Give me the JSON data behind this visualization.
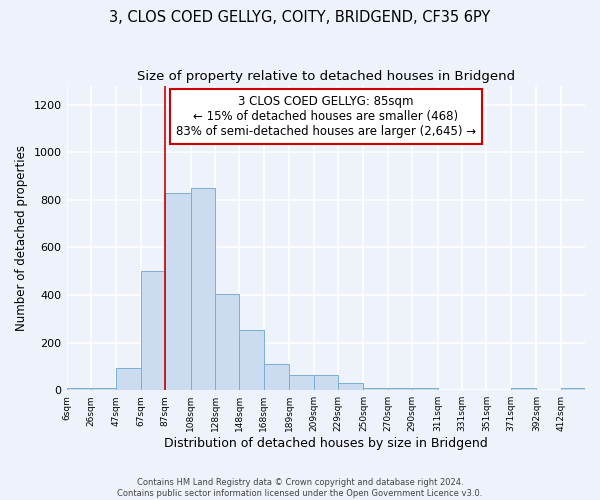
{
  "title": "3, CLOS COED GELLYG, COITY, BRIDGEND, CF35 6PY",
  "subtitle": "Size of property relative to detached houses in Bridgend",
  "xlabel": "Distribution of detached houses by size in Bridgend",
  "ylabel": "Number of detached properties",
  "bar_edges": [
    6,
    26,
    47,
    67,
    87,
    108,
    128,
    148,
    168,
    189,
    209,
    229,
    250,
    270,
    290,
    311,
    331,
    351,
    371,
    392,
    412,
    432
  ],
  "bar_heights": [
    10,
    10,
    95,
    500,
    830,
    850,
    405,
    255,
    110,
    65,
    65,
    30,
    10,
    10,
    10,
    0,
    0,
    0,
    8,
    0,
    8
  ],
  "bar_color": "#ccdcf0",
  "bar_edgecolor": "#7aafd4",
  "vline_x": 87,
  "vline_color": "#cc0000",
  "annotation_text": "3 CLOS COED GELLYG: 85sqm\n← 15% of detached houses are smaller (468)\n83% of semi-detached houses are larger (2,645) →",
  "annotation_box_color": "white",
  "annotation_box_edgecolor": "#cc0000",
  "ylim": [
    0,
    1280
  ],
  "yticks": [
    0,
    200,
    400,
    600,
    800,
    1000,
    1200
  ],
  "tick_labels": [
    "6sqm",
    "26sqm",
    "47sqm",
    "67sqm",
    "87sqm",
    "108sqm",
    "128sqm",
    "148sqm",
    "168sqm",
    "189sqm",
    "209sqm",
    "229sqm",
    "250sqm",
    "270sqm",
    "290sqm",
    "311sqm",
    "331sqm",
    "351sqm",
    "371sqm",
    "392sqm",
    "412sqm"
  ],
  "background_color": "#eef2fa",
  "grid_color": "white",
  "footer_text": "Contains HM Land Registry data © Crown copyright and database right 2024.\nContains public sector information licensed under the Open Government Licence v3.0.",
  "title_fontsize": 10.5,
  "subtitle_fontsize": 9.5,
  "xlabel_fontsize": 9,
  "ylabel_fontsize": 8.5,
  "annot_fontsize": 8.5
}
